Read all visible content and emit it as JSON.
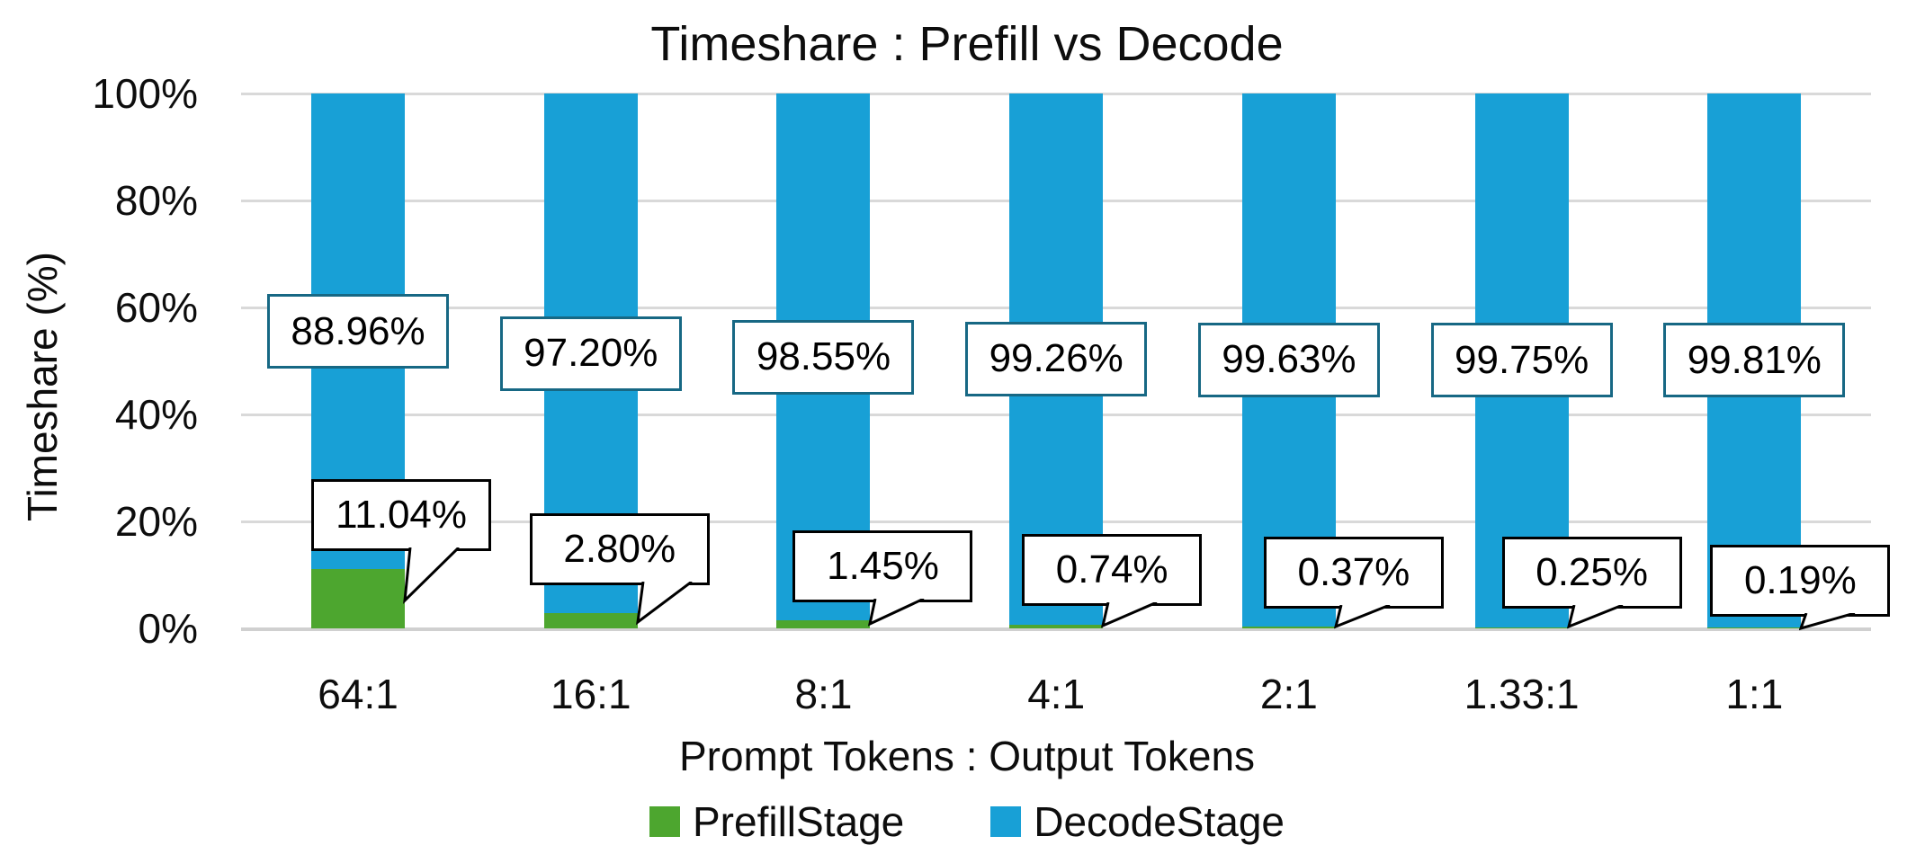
{
  "title": "Timeshare : Prefill vs Decode",
  "y_axis": {
    "title": "Timeshare (%)",
    "ticks": [
      "100%",
      "80%",
      "60%",
      "40%",
      "20%",
      "0%"
    ]
  },
  "x_axis": {
    "title": "Prompt Tokens : Output Tokens"
  },
  "legend": {
    "items": [
      {
        "label": "PrefillStage",
        "color": "#4DA62F"
      },
      {
        "label": "DecodeStage",
        "color": "#18A0D6"
      }
    ]
  },
  "colors": {
    "prefill": "#4DA62F",
    "decode": "#18A0D6",
    "grid": "#D9D9D9",
    "baseline": "#D0D0D0",
    "decode_label_border": "#176884",
    "callout_border": "#000000",
    "text": "#000000",
    "background": "#FFFFFF"
  },
  "chart_data": {
    "type": "bar",
    "stacked": true,
    "title": "Timeshare : Prefill vs Decode",
    "xlabel": "Prompt Tokens : Output Tokens",
    "ylabel": "Timeshare (%)",
    "categories": [
      "64:1",
      "16:1",
      "8:1",
      "4:1",
      "2:1",
      "1.33:1",
      "1:1"
    ],
    "series": [
      {
        "name": "PrefillStage",
        "color": "#4DA62F",
        "values": [
          11.04,
          2.8,
          1.45,
          0.74,
          0.37,
          0.25,
          0.19
        ],
        "labels": [
          "11.04%",
          "2.80%",
          "1.45%",
          "0.74%",
          "0.37%",
          "0.25%",
          "0.19%"
        ]
      },
      {
        "name": "DecodeStage",
        "color": "#18A0D6",
        "values": [
          88.96,
          97.2,
          98.55,
          99.26,
          99.63,
          99.75,
          99.81
        ],
        "labels": [
          "88.96%",
          "97.20%",
          "98.55%",
          "99.26%",
          "99.63%",
          "99.75%",
          "99.81%"
        ]
      }
    ],
    "ylim": [
      0,
      100
    ],
    "ytick_step": 20,
    "grid": true,
    "legend_position": "bottom"
  }
}
